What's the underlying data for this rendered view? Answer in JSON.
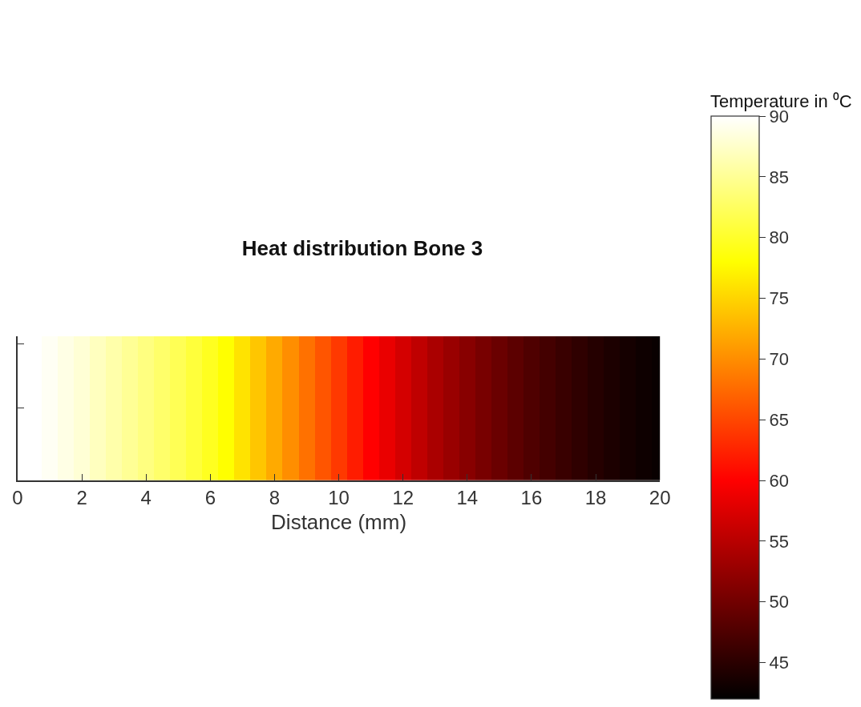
{
  "chart_data": {
    "type": "heatmap",
    "title": "Heat distribution Bone 3",
    "xlabel": "Distance (mm)",
    "clabel": "Temperature in ⁰C",
    "x": [
      1.0,
      1.5,
      2.0,
      2.5,
      3.0,
      3.5,
      4.0,
      4.5,
      5.0,
      5.5,
      6.0,
      6.5,
      7.0,
      7.5,
      8.0,
      8.5,
      9.0,
      9.5,
      10.0,
      10.5,
      11.0,
      11.5,
      12.0,
      12.5,
      13.0,
      13.5,
      14.0,
      14.5,
      15.0,
      15.5,
      16.0,
      16.5,
      17.0,
      17.5,
      18.0,
      18.5,
      19.0,
      19.5,
      20.0
    ],
    "cells": [
      [
        89.5,
        88.8,
        88,
        87,
        86,
        85,
        84,
        83,
        82,
        80.8,
        79.5,
        78,
        76,
        74,
        72,
        70,
        68,
        66,
        64,
        62,
        60,
        58.5,
        57,
        55.5,
        54,
        52.8,
        51.6,
        50.5,
        49.5,
        48.5,
        47.6,
        46.8,
        46,
        45.3,
        44.6,
        44,
        43.5,
        43,
        42.6
      ]
    ],
    "xlim": [
      0,
      20
    ],
    "xticks": [
      0,
      2,
      4,
      6,
      8,
      10,
      12,
      14,
      16,
      18,
      20
    ],
    "y_categories": [
      null
    ],
    "tick_labels": "x",
    "clim": [
      42,
      90
    ],
    "cticks": [
      45,
      50,
      55,
      60,
      65,
      70,
      75,
      80,
      85,
      90
    ]
  }
}
